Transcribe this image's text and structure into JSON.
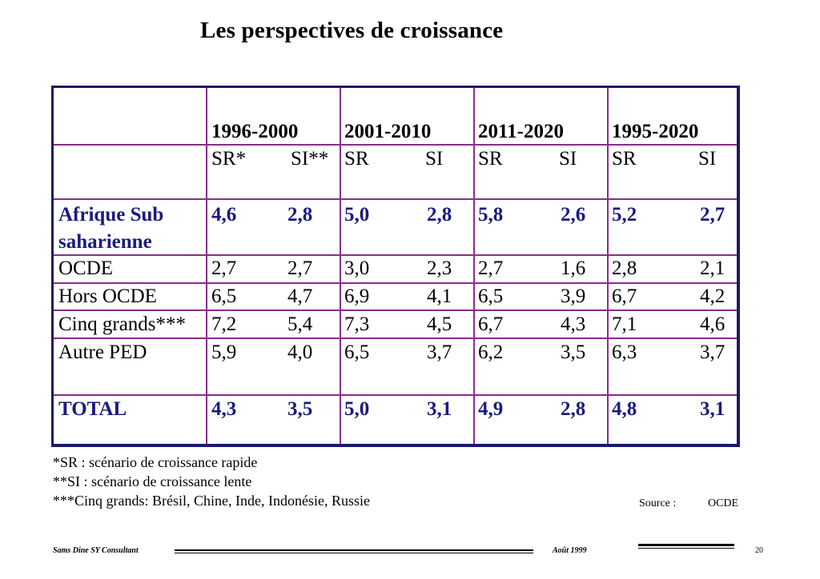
{
  "title": "Les perspectives de croissance",
  "table": {
    "periods": [
      "1996-2000",
      "2001-2010",
      "2011-2020",
      "1995-2020"
    ],
    "scenario_headers": [
      {
        "left": "SR*",
        "right": "SI**"
      },
      {
        "left": "SR",
        "right": "SI"
      },
      {
        "left": "SR",
        "right": "SI"
      },
      {
        "left": "SR",
        "right": "SI"
      }
    ],
    "rows": [
      {
        "label_line1": "Afrique Sub",
        "label_line2": "saharienne",
        "values": [
          "4,6",
          "2,8",
          "5,0",
          "2,8",
          "5,8",
          "2,6",
          "5,2",
          "2,7"
        ]
      },
      {
        "label_line1": "OCDE",
        "label_line2": "",
        "values": [
          "2,7",
          "2,7",
          "3,0",
          "2,3",
          "2,7",
          "1,6",
          "2,8",
          "2,1"
        ]
      },
      {
        "label_line1": "Hors OCDE",
        "label_line2": "",
        "values": [
          "6,5",
          "4,7",
          "6,9",
          "4,1",
          "6,5",
          "3,9",
          "6,7",
          "4,2"
        ]
      },
      {
        "label_line1": "Cinq grands***",
        "label_line2": "",
        "values": [
          "7,2",
          "5,4",
          "7,3",
          "4,5",
          "6,7",
          "4,3",
          "7,1",
          "4,6"
        ]
      },
      {
        "label_line1": "Autre PED",
        "label_line2": "",
        "values": [
          "5,9",
          "4,0",
          "6,5",
          "3,7",
          "6,2",
          "3,5",
          "6,3",
          "3,7"
        ]
      },
      {
        "label_line1": "TOTAL",
        "label_line2": "",
        "values": [
          "4,3",
          "3,5",
          "5,0",
          "3,1",
          "4,9",
          "2,8",
          "4,8",
          "3,1"
        ]
      }
    ]
  },
  "notes": [
    "*SR : scénario de croissance rapide",
    "**SI : scénario de croissance lente",
    "***Cinq grands: Brésil, Chine, Inde, Indonésie, Russie"
  ],
  "source": {
    "label": "Source :",
    "value": "OCDE"
  },
  "footer": {
    "author": "Sams Dine SY Consultant",
    "date": "Août 1999",
    "page": "20"
  },
  "colors": {
    "accent_text": "#1a1a80",
    "grid": "#8a2d8a",
    "border": "#1a1a66"
  }
}
